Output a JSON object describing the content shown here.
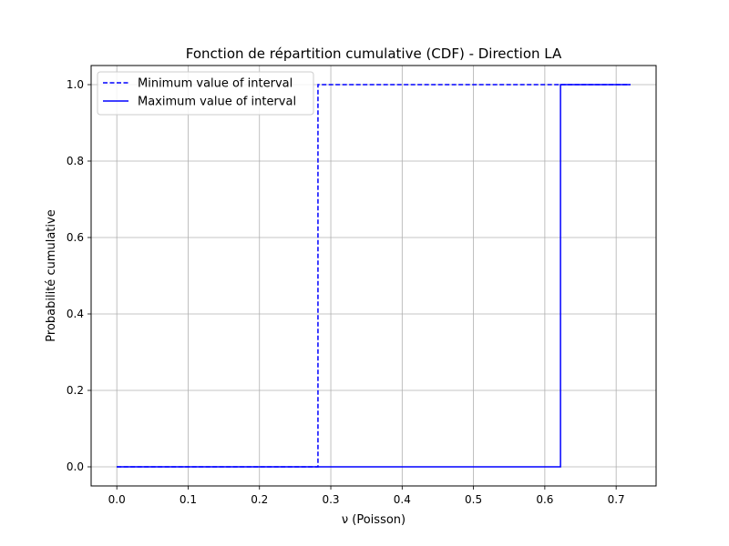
{
  "chart_data": {
    "type": "line",
    "title": "Fonction de répartition cumulative (CDF) - Direction LA",
    "xlabel": "ν (Poisson)",
    "ylabel": "Probabilité cumulative",
    "xlim": [
      -0.036,
      0.756
    ],
    "ylim": [
      -0.05,
      1.05
    ],
    "x_ticks": [
      "0.0",
      "0.1",
      "0.2",
      "0.3",
      "0.4",
      "0.5",
      "0.6",
      "0.7"
    ],
    "y_ticks": [
      "0.0",
      "0.2",
      "0.4",
      "0.6",
      "0.8",
      "1.0"
    ],
    "grid": true,
    "legend_position": "top-left",
    "series": [
      {
        "name": "Minimum value of interval",
        "style": "dashed",
        "color": "#0000ff",
        "x": [
          0.0,
          0.282,
          0.282,
          0.72
        ],
        "y": [
          0.0,
          0.0,
          1.0,
          1.0
        ]
      },
      {
        "name": "Maximum value of interval",
        "style": "solid",
        "color": "#0000ff",
        "x": [
          0.0,
          0.622,
          0.622,
          0.72
        ],
        "y": [
          0.0,
          0.0,
          1.0,
          1.0
        ]
      }
    ]
  }
}
